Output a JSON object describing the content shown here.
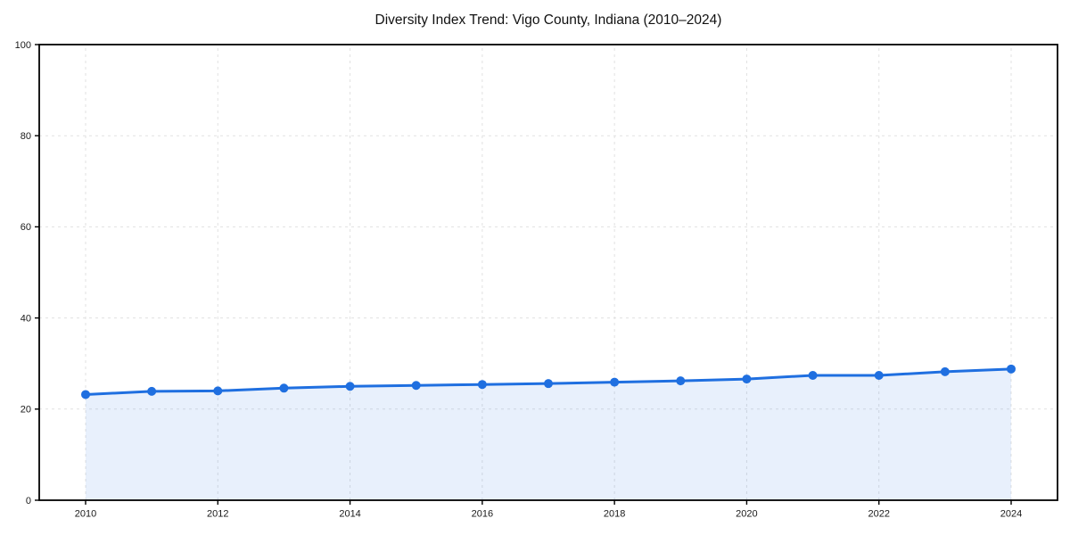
{
  "chart_data": {
    "type": "line",
    "title": "Diversity Index Trend: Vigo County, Indiana (2010–2024)",
    "series_name": "Diversity Index",
    "x": [
      2010,
      2011,
      2012,
      2013,
      2014,
      2015,
      2016,
      2017,
      2018,
      2019,
      2020,
      2021,
      2022,
      2023,
      2024
    ],
    "values": [
      23.2,
      23.9,
      24.0,
      24.6,
      25.0,
      25.2,
      25.4,
      25.6,
      25.9,
      26.2,
      26.6,
      27.4,
      27.4,
      28.2,
      28.8
    ],
    "xlabel": "",
    "ylabel": "",
    "ylim": [
      0,
      100
    ],
    "yticks": [
      0,
      20,
      40,
      60,
      80,
      100
    ],
    "xticks": [
      2010,
      2012,
      2014,
      2016,
      2018,
      2020,
      2022,
      2024
    ],
    "grid": true,
    "grid_style": "dashed",
    "legend": false,
    "marker": "circle",
    "line_color": "#1f6fe0",
    "fill_color": "rgba(31,111,224,0.10)",
    "background_color": "#ffffff",
    "axis_color": "#000000"
  }
}
